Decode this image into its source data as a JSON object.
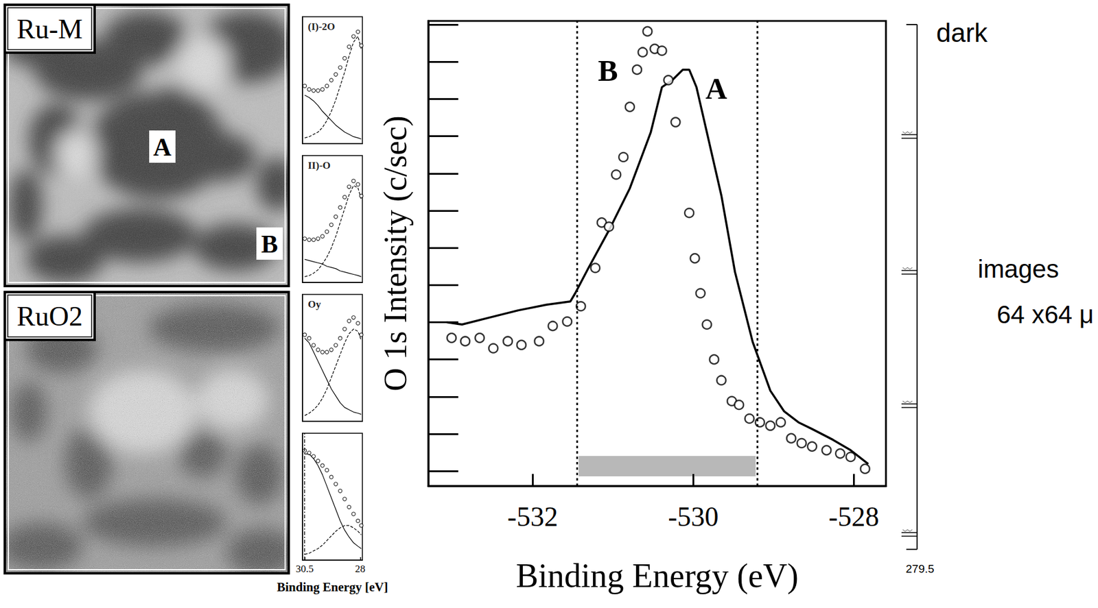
{
  "chart_data": [
    {
      "type": "line",
      "x_label": "Binding Energy (eV)",
      "y_label": "O 1s Intensity (c/sec)",
      "xlim": [
        -533.3,
        -527.6
      ],
      "xticks": [
        -532,
        -530,
        -528
      ],
      "ylim": [
        -0.4,
        12.1
      ],
      "yticks": [
        0,
        1,
        2,
        3,
        4,
        5,
        6,
        7,
        8,
        9,
        10,
        11,
        12
      ],
      "tick_labels": "x",
      "window": [
        -531.45,
        -529.2
      ],
      "series": [
        {
          "name": "A",
          "color": "#000000",
          "line_style": "solid",
          "x": [
            -533.07,
            -532.88,
            -532.53,
            -532.18,
            -531.83,
            -531.53,
            -531.47,
            -531.31,
            -531.05,
            -530.79,
            -530.53,
            -530.39,
            -530.26,
            -530.13,
            -530.05,
            -529.96,
            -529.83,
            -529.65,
            -529.48,
            -529.26,
            -529.04,
            -528.87,
            -528.69,
            -528.52,
            -528.26,
            -528.04,
            -527.82
          ],
          "values": [
            4.0,
            3.94,
            4.13,
            4.32,
            4.47,
            4.56,
            4.78,
            5.44,
            6.47,
            7.6,
            9.1,
            10.32,
            10.51,
            10.79,
            10.79,
            10.32,
            9.1,
            7.41,
            5.35,
            3.47,
            2.16,
            1.61,
            1.31,
            1.13,
            0.84,
            0.56,
            0.19
          ]
        },
        {
          "name": "B",
          "color": "#000000",
          "type": "scatter",
          "marker": "circle",
          "x": [
            -533.01,
            -532.84,
            -532.66,
            -532.49,
            -532.31,
            -532.14,
            -531.92,
            -531.75,
            -531.57,
            -531.4,
            -531.22,
            -531.14,
            -531.05,
            -530.96,
            -530.87,
            -530.79,
            -530.7,
            -530.63,
            -530.57,
            -530.48,
            -530.39,
            -530.31,
            -530.22,
            -530.05,
            -529.98,
            -529.91,
            -529.83,
            -529.74,
            -529.65,
            -529.52,
            -529.43,
            -529.3,
            -529.17,
            -529.04,
            -528.91,
            -528.78,
            -528.65,
            -528.52,
            -528.34,
            -528.17,
            -528.04,
            -527.86
          ],
          "values": [
            3.58,
            3.49,
            3.58,
            3.3,
            3.49,
            3.39,
            3.49,
            3.9,
            4.02,
            4.43,
            5.46,
            6.68,
            6.57,
            7.97,
            8.44,
            9.79,
            10.79,
            11.26,
            11.82,
            11.35,
            11.3,
            10.51,
            9.38,
            6.94,
            5.72,
            4.78,
            3.94,
            3.0,
            2.44,
            1.88,
            1.78,
            1.41,
            1.31,
            1.22,
            1.31,
            0.88,
            0.75,
            0.66,
            0.56,
            0.47,
            0.38,
            0.06
          ]
        }
      ]
    },
    {
      "type": "line",
      "title": "(I)-2O",
      "tick_labels": false,
      "xlim": [
        30.6,
        27.9
      ],
      "ylim": [
        0,
        1.1
      ],
      "x": [
        30.5,
        30.3,
        30.1,
        29.9,
        29.7,
        29.5,
        29.3,
        29.1,
        28.9,
        28.7,
        28.5,
        28.3,
        28.1,
        27.95
      ],
      "series": [
        {
          "type": "scatter",
          "marker": "circle",
          "color": "#000000",
          "values": [
            0.5,
            0.47,
            0.46,
            0.46,
            0.47,
            0.5,
            0.55,
            0.6,
            0.66,
            0.74,
            0.84,
            0.93,
            0.97,
            0.85
          ]
        },
        {
          "line_style": "dashed",
          "color": "#000000",
          "values": [
            0.05,
            0.06,
            0.08,
            0.1,
            0.14,
            0.2,
            0.28,
            0.38,
            0.5,
            0.62,
            0.76,
            0.88,
            0.93,
            0.82
          ]
        },
        {
          "line_style": "solid",
          "color": "#000000",
          "values": [
            0.42,
            0.4,
            0.37,
            0.33,
            0.28,
            0.24,
            0.2,
            0.16,
            0.13,
            0.1,
            0.08,
            0.06,
            0.05,
            0.04
          ]
        }
      ]
    },
    {
      "type": "line",
      "title": "II)-O",
      "tick_labels": false,
      "xlim": [
        30.6,
        27.9
      ],
      "ylim": [
        0,
        1.1
      ],
      "x": [
        30.5,
        30.3,
        30.1,
        29.9,
        29.7,
        29.5,
        29.3,
        29.1,
        28.9,
        28.7,
        28.5,
        28.3,
        28.1,
        27.95
      ],
      "series": [
        {
          "type": "scatter",
          "marker": "circle",
          "color": "#000000",
          "values": [
            0.38,
            0.37,
            0.37,
            0.38,
            0.4,
            0.44,
            0.5,
            0.57,
            0.65,
            0.74,
            0.83,
            0.88,
            0.85,
            0.75
          ]
        },
        {
          "line_style": "dashed",
          "color": "#000000",
          "values": [
            0.05,
            0.06,
            0.08,
            0.11,
            0.16,
            0.22,
            0.3,
            0.4,
            0.52,
            0.64,
            0.76,
            0.84,
            0.82,
            0.72
          ]
        },
        {
          "line_style": "solid",
          "color": "#000000",
          "values": [
            0.2,
            0.19,
            0.18,
            0.17,
            0.16,
            0.14,
            0.13,
            0.12,
            0.1,
            0.09,
            0.08,
            0.07,
            0.06,
            0.05
          ]
        }
      ]
    },
    {
      "type": "line",
      "title": "Oy",
      "tick_labels": false,
      "xlim": [
        30.6,
        27.9
      ],
      "ylim": [
        0,
        1.1
      ],
      "x": [
        30.5,
        30.3,
        30.1,
        29.9,
        29.7,
        29.5,
        29.3,
        29.1,
        28.9,
        28.7,
        28.5,
        28.3,
        28.1,
        27.95
      ],
      "series": [
        {
          "type": "scatter",
          "marker": "circle",
          "color": "#000000",
          "values": [
            0.75,
            0.72,
            0.66,
            0.62,
            0.6,
            0.6,
            0.62,
            0.66,
            0.72,
            0.8,
            0.87,
            0.9,
            0.85,
            0.75
          ]
        },
        {
          "line_style": "dashed",
          "color": "#000000",
          "values": [
            0.05,
            0.07,
            0.1,
            0.14,
            0.2,
            0.28,
            0.38,
            0.48,
            0.58,
            0.68,
            0.76,
            0.8,
            0.78,
            0.7
          ]
        },
        {
          "line_style": "solid",
          "color": "#000000",
          "values": [
            0.72,
            0.68,
            0.6,
            0.52,
            0.44,
            0.36,
            0.28,
            0.22,
            0.16,
            0.12,
            0.1,
            0.08,
            0.07,
            0.06
          ]
        }
      ]
    },
    {
      "type": "line",
      "tick_labels": "x",
      "x_label": "Binding Energy [eV]",
      "xlim": [
        30.6,
        27.9
      ],
      "xticks": [
        30.5,
        28
      ],
      "ylim": [
        0,
        1.1
      ],
      "x": [
        30.5,
        30.3,
        30.1,
        29.9,
        29.7,
        29.5,
        29.3,
        29.1,
        28.9,
        28.7,
        28.5,
        28.3,
        28.1,
        27.95
      ],
      "series": [
        {
          "type": "scatter",
          "marker": "circle",
          "color": "#000000",
          "values": [
            0.95,
            0.93,
            0.9,
            0.86,
            0.82,
            0.78,
            0.72,
            0.66,
            0.6,
            0.53,
            0.46,
            0.4,
            0.34,
            0.3
          ]
        },
        {
          "line_style": "solid",
          "color": "#000000",
          "values": [
            0.92,
            0.92,
            0.88,
            0.82,
            0.74,
            0.64,
            0.54,
            0.44,
            0.34,
            0.26,
            0.2,
            0.15,
            0.12,
            0.1
          ]
        },
        {
          "line_style": "dashed",
          "color": "#000000",
          "values": [
            0.05,
            0.06,
            0.08,
            0.1,
            0.13,
            0.17,
            0.21,
            0.25,
            0.28,
            0.3,
            0.3,
            0.28,
            0.25,
            0.22
          ]
        }
      ]
    }
  ],
  "images": [
    {
      "label": "Ru-M",
      "marks": [
        "A",
        "B"
      ]
    },
    {
      "label": "RuO2"
    }
  ],
  "side_scale": {
    "top_label": "dark",
    "caption": [
      "images",
      "64 x64 μ"
    ],
    "bottom_label": "279.5"
  }
}
